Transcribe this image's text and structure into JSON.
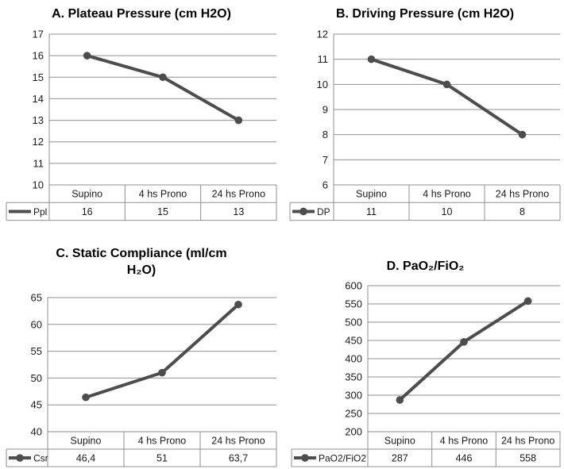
{
  "figure": {
    "background": "#ffffff",
    "layout": "2x2 line charts with data tables"
  },
  "colors": {
    "series_line": "#4d4d4d",
    "grid_line": "#8f8f8f",
    "table_border": "#8f8f8f",
    "text": "#1a1a1a",
    "title_text": "#000000"
  },
  "chart_data": [
    {
      "type": "line",
      "panel_label": "A",
      "title": "A. Plateau Pressure (cm H2O)",
      "categories": [
        "Supino",
        "4 hs Prono",
        "24 hs Prono"
      ],
      "series": [
        {
          "name": "Ppl",
          "values": [
            16,
            15,
            13
          ],
          "display_values": [
            "16",
            "15",
            "13"
          ]
        }
      ],
      "ylim": [
        10,
        17
      ],
      "ytick_step": 1,
      "ytick_labels": [
        "17",
        "16",
        "15",
        "14",
        "13",
        "12",
        "11",
        "10"
      ],
      "grid": true,
      "legend_position": "data-table-left",
      "legend_marker": "line",
      "has_data_table": true
    },
    {
      "type": "line",
      "panel_label": "B",
      "title": "B. Driving Pressure (cm H2O)",
      "categories": [
        "Supino",
        "4 hs Prono",
        "24 hs Prono"
      ],
      "series": [
        {
          "name": "DP",
          "values": [
            11,
            10,
            8
          ],
          "display_values": [
            "11",
            "10",
            "8"
          ]
        }
      ],
      "ylim": [
        6,
        12
      ],
      "ytick_step": 1,
      "ytick_labels": [
        "12",
        "11",
        "10",
        "9",
        "8",
        "7",
        "6"
      ],
      "grid": true,
      "legend_position": "data-table-left",
      "legend_marker": "line-dot",
      "has_data_table": true
    },
    {
      "type": "line",
      "panel_label": "C",
      "title": "C. Static Compliance (ml/cm\nH₂O)",
      "categories": [
        "Supino",
        "4 hs Prono",
        "24 hs Prono"
      ],
      "series": [
        {
          "name": "Csr",
          "values": [
            46.4,
            51,
            63.7
          ],
          "display_values": [
            "46,4",
            "51",
            "63,7"
          ]
        }
      ],
      "ylim": [
        40,
        65
      ],
      "ytick_step": 5,
      "ytick_labels": [
        "65",
        "60",
        "55",
        "50",
        "45",
        "40"
      ],
      "grid": true,
      "legend_position": "data-table-left",
      "legend_marker": "line-dot",
      "has_data_table": true
    },
    {
      "type": "line",
      "panel_label": "D",
      "title": "D. PaO₂/FiO₂",
      "categories": [
        "Supino",
        "4 hs Prono",
        "24 hs Prono"
      ],
      "series": [
        {
          "name": "PaO2/FiO2",
          "values": [
            287,
            446,
            558
          ],
          "display_values": [
            "287",
            "446",
            "558"
          ]
        }
      ],
      "ylim": [
        200,
        600
      ],
      "ytick_step": 50,
      "ytick_labels": [
        "600",
        "550",
        "500",
        "450",
        "400",
        "350",
        "300",
        "250",
        "200"
      ],
      "grid": true,
      "legend_position": "data-table-left",
      "legend_marker": "line-dot",
      "has_data_table": true
    }
  ]
}
